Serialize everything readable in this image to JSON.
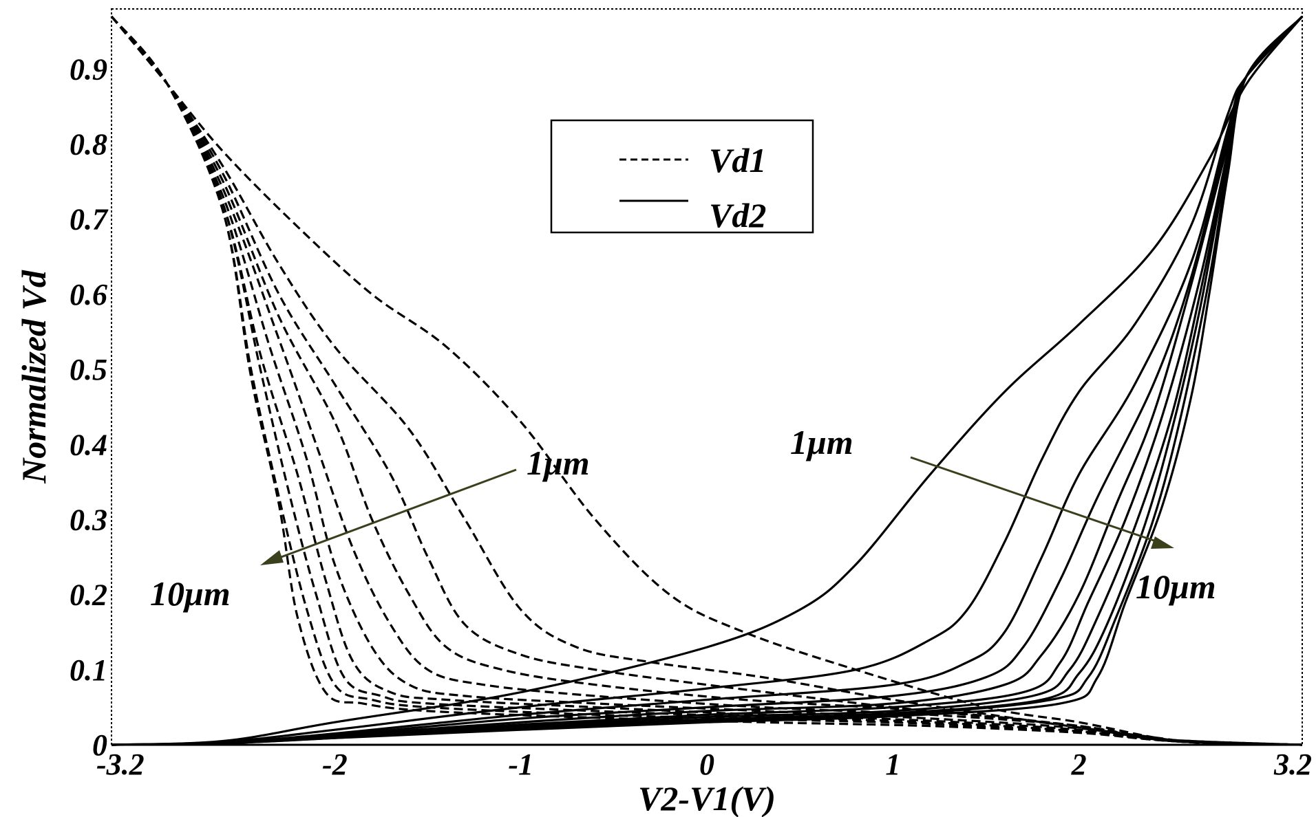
{
  "chart_data": {
    "type": "line",
    "title": "",
    "xlabel": "V2-V1(V)",
    "ylabel": "Normalized Vd",
    "xlim": [
      -3.2,
      3.2
    ],
    "ylim": [
      0,
      0.98
    ],
    "grid": false,
    "legend_position": "top-center",
    "x_ticks": [
      {
        "value": -3.2,
        "label": "-3.2"
      },
      {
        "value": -2,
        "label": "-2"
      },
      {
        "value": -1,
        "label": "-1"
      },
      {
        "value": 0,
        "label": "0"
      },
      {
        "value": 1,
        "label": "1"
      },
      {
        "value": 2,
        "label": "2"
      },
      {
        "value": 3.2,
        "label": "3.2"
      }
    ],
    "y_ticks": [
      {
        "value": 0,
        "label": "0"
      },
      {
        "value": 0.1,
        "label": "0.1"
      },
      {
        "value": 0.2,
        "label": "0.2"
      },
      {
        "value": 0.3,
        "label": "0.3"
      },
      {
        "value": 0.4,
        "label": "0.4"
      },
      {
        "value": 0.5,
        "label": "0.5"
      },
      {
        "value": 0.6,
        "label": "0.6"
      },
      {
        "value": 0.7,
        "label": "0.7"
      },
      {
        "value": 0.8,
        "label": "0.8"
      },
      {
        "value": 0.9,
        "label": "0.9"
      }
    ],
    "legend": [
      {
        "label": "Vd1",
        "style": "dashed"
      },
      {
        "label": "Vd2",
        "style": "solid"
      }
    ],
    "annotations": [
      {
        "text": "1μm",
        "group": "Vd1"
      },
      {
        "text": "10μm",
        "group": "Vd1"
      },
      {
        "text": "1μm",
        "group": "Vd2"
      },
      {
        "text": "10μm",
        "group": "Vd2"
      }
    ],
    "arrow_color": "#3a3f1c",
    "series": [
      {
        "group": "Vd1",
        "style": "dashed",
        "x": [
          -3.2,
          -2.9,
          -2.6,
          -2.2,
          -1.8,
          -1.4,
          -1.0,
          -0.6,
          -0.2,
          0.2,
          0.8,
          1.5,
          2.0,
          2.4,
          2.6,
          3.2
        ],
        "y": [
          0.97,
          0.88,
          0.79,
          0.69,
          0.6,
          0.53,
          0.43,
          0.3,
          0.2,
          0.15,
          0.1,
          0.05,
          0.03,
          0.01,
          0.005,
          0.0
        ]
      },
      {
        "group": "Vd1",
        "style": "dashed",
        "x": [
          -3.2,
          -2.9,
          -2.6,
          -2.3,
          -2.0,
          -1.6,
          -1.3,
          -1.0,
          -0.7,
          -0.3,
          0.3,
          1.0,
          1.8,
          2.4,
          2.6,
          3.2
        ],
        "y": [
          0.97,
          0.88,
          0.77,
          0.64,
          0.53,
          0.42,
          0.3,
          0.18,
          0.13,
          0.11,
          0.09,
          0.06,
          0.03,
          0.01,
          0.005,
          0.0
        ]
      },
      {
        "group": "Vd1",
        "style": "dashed",
        "x": [
          -3.2,
          -2.9,
          -2.6,
          -2.3,
          -2.0,
          -1.7,
          -1.5,
          -1.3,
          -1.0,
          -0.6,
          0.0,
          1.0,
          2.0,
          2.5,
          3.2
        ],
        "y": [
          0.97,
          0.88,
          0.76,
          0.6,
          0.48,
          0.36,
          0.25,
          0.16,
          0.12,
          0.1,
          0.08,
          0.05,
          0.025,
          0.005,
          0.0
        ]
      },
      {
        "group": "Vd1",
        "style": "dashed",
        "x": [
          -3.2,
          -2.9,
          -2.6,
          -2.3,
          -2.0,
          -1.8,
          -1.6,
          -1.4,
          -1.1,
          -0.6,
          0.2,
          1.2,
          2.0,
          2.5,
          3.2
        ],
        "y": [
          0.97,
          0.88,
          0.75,
          0.57,
          0.43,
          0.3,
          0.2,
          0.13,
          0.1,
          0.08,
          0.06,
          0.045,
          0.025,
          0.005,
          0.0
        ]
      },
      {
        "group": "Vd1",
        "style": "dashed",
        "x": [
          -3.2,
          -2.9,
          -2.6,
          -2.3,
          -2.1,
          -1.9,
          -1.7,
          -1.5,
          -1.2,
          -0.6,
          0.3,
          1.2,
          2.0,
          2.5,
          3.2
        ],
        "y": [
          0.97,
          0.88,
          0.74,
          0.54,
          0.4,
          0.26,
          0.16,
          0.1,
          0.08,
          0.065,
          0.05,
          0.04,
          0.025,
          0.005,
          0.0
        ]
      },
      {
        "group": "Vd1",
        "style": "dashed",
        "x": [
          -3.2,
          -2.9,
          -2.6,
          -2.35,
          -2.15,
          -2.0,
          -1.8,
          -1.6,
          -1.3,
          -0.6,
          0.3,
          1.2,
          2.0,
          2.5,
          3.2
        ],
        "y": [
          0.97,
          0.88,
          0.73,
          0.53,
          0.38,
          0.24,
          0.13,
          0.08,
          0.065,
          0.055,
          0.045,
          0.035,
          0.022,
          0.005,
          0.0
        ]
      },
      {
        "group": "Vd1",
        "style": "dashed",
        "x": [
          -3.2,
          -2.9,
          -2.6,
          -2.4,
          -2.2,
          -2.05,
          -1.9,
          -1.7,
          -1.4,
          -0.6,
          0.3,
          1.2,
          2.0,
          2.5,
          3.2
        ],
        "y": [
          0.97,
          0.88,
          0.72,
          0.52,
          0.36,
          0.22,
          0.11,
          0.07,
          0.06,
          0.05,
          0.04,
          0.032,
          0.02,
          0.005,
          0.0
        ]
      },
      {
        "group": "Vd1",
        "style": "dashed",
        "x": [
          -3.2,
          -2.9,
          -2.6,
          -2.4,
          -2.25,
          -2.1,
          -1.95,
          -1.75,
          -1.5,
          -0.6,
          0.3,
          1.2,
          2.0,
          2.5,
          3.2
        ],
        "y": [
          0.97,
          0.88,
          0.72,
          0.5,
          0.34,
          0.2,
          0.09,
          0.065,
          0.055,
          0.045,
          0.037,
          0.03,
          0.018,
          0.005,
          0.0
        ]
      },
      {
        "group": "Vd1",
        "style": "dashed",
        "x": [
          -3.2,
          -2.9,
          -2.6,
          -2.45,
          -2.3,
          -2.15,
          -2.0,
          -1.8,
          -1.5,
          -0.6,
          0.3,
          1.2,
          2.0,
          2.5,
          3.2
        ],
        "y": [
          0.97,
          0.88,
          0.71,
          0.5,
          0.33,
          0.18,
          0.08,
          0.06,
          0.05,
          0.04,
          0.034,
          0.028,
          0.017,
          0.005,
          0.0
        ]
      },
      {
        "group": "Vd1",
        "style": "dashed",
        "x": [
          -3.2,
          -2.9,
          -2.6,
          -2.45,
          -2.3,
          -2.2,
          -2.05,
          -1.85,
          -1.5,
          -0.6,
          0.3,
          1.2,
          2.0,
          2.5,
          3.2
        ],
        "y": [
          0.97,
          0.88,
          0.71,
          0.49,
          0.32,
          0.17,
          0.07,
          0.055,
          0.045,
          0.036,
          0.03,
          0.025,
          0.016,
          0.005,
          0.0
        ]
      },
      {
        "group": "Vd2",
        "style": "solid",
        "x": [
          -3.2,
          -2.6,
          -2.0,
          -1.0,
          0.0,
          0.5,
          0.8,
          1.2,
          1.6,
          2.0,
          2.4,
          2.7,
          2.9,
          3.2
        ],
        "y": [
          0.0,
          0.005,
          0.03,
          0.07,
          0.13,
          0.18,
          0.24,
          0.36,
          0.47,
          0.56,
          0.66,
          0.78,
          0.88,
          0.97
        ]
      },
      {
        "group": "Vd2",
        "style": "solid",
        "x": [
          -3.2,
          -2.6,
          -2.0,
          -1.0,
          0.0,
          0.8,
          1.2,
          1.4,
          1.6,
          1.8,
          2.0,
          2.3,
          2.6,
          2.8,
          2.9,
          3.2
        ],
        "y": [
          0.0,
          0.004,
          0.02,
          0.05,
          0.075,
          0.1,
          0.14,
          0.18,
          0.27,
          0.38,
          0.47,
          0.56,
          0.69,
          0.84,
          0.89,
          0.97
        ]
      },
      {
        "group": "Vd2",
        "style": "solid",
        "x": [
          -3.2,
          -2.6,
          -2.0,
          -1.0,
          0.0,
          1.0,
          1.4,
          1.6,
          1.8,
          2.0,
          2.3,
          2.6,
          2.8,
          2.9,
          3.2
        ],
        "y": [
          0.0,
          0.003,
          0.015,
          0.04,
          0.06,
          0.08,
          0.11,
          0.15,
          0.25,
          0.36,
          0.48,
          0.64,
          0.82,
          0.89,
          0.97
        ]
      },
      {
        "group": "Vd2",
        "style": "solid",
        "x": [
          -3.2,
          -2.6,
          -2.0,
          -1.0,
          0.0,
          1.0,
          1.5,
          1.7,
          1.9,
          2.1,
          2.4,
          2.6,
          2.8,
          2.9,
          3.2
        ],
        "y": [
          0.0,
          0.003,
          0.013,
          0.035,
          0.05,
          0.065,
          0.09,
          0.13,
          0.22,
          0.33,
          0.48,
          0.62,
          0.81,
          0.89,
          0.97
        ]
      },
      {
        "group": "Vd2",
        "style": "solid",
        "x": [
          -3.2,
          -2.6,
          -2.0,
          -1.0,
          0.0,
          1.0,
          1.6,
          1.8,
          2.0,
          2.2,
          2.4,
          2.6,
          2.8,
          2.9,
          3.2
        ],
        "y": [
          0.0,
          0.002,
          0.012,
          0.03,
          0.045,
          0.055,
          0.08,
          0.12,
          0.2,
          0.32,
          0.44,
          0.61,
          0.8,
          0.89,
          0.97
        ]
      },
      {
        "group": "Vd2",
        "style": "solid",
        "x": [
          -3.2,
          -2.6,
          -2.0,
          -1.0,
          0.0,
          1.0,
          1.7,
          1.9,
          2.05,
          2.25,
          2.45,
          2.65,
          2.8,
          2.9,
          3.2
        ],
        "y": [
          0.0,
          0.002,
          0.011,
          0.027,
          0.04,
          0.05,
          0.07,
          0.11,
          0.19,
          0.3,
          0.44,
          0.62,
          0.79,
          0.89,
          0.97
        ]
      },
      {
        "group": "Vd2",
        "style": "solid",
        "x": [
          -3.2,
          -2.6,
          -2.0,
          -1.0,
          0.0,
          1.0,
          1.75,
          1.95,
          2.1,
          2.3,
          2.5,
          2.65,
          2.8,
          2.9,
          3.2
        ],
        "y": [
          0.0,
          0.002,
          0.01,
          0.025,
          0.037,
          0.045,
          0.065,
          0.1,
          0.17,
          0.29,
          0.44,
          0.6,
          0.78,
          0.89,
          0.97
        ]
      },
      {
        "group": "Vd2",
        "style": "solid",
        "x": [
          -3.2,
          -2.6,
          -2.0,
          -1.0,
          0.0,
          1.0,
          1.8,
          2.0,
          2.15,
          2.35,
          2.5,
          2.65,
          2.8,
          2.9,
          3.2
        ],
        "y": [
          0.0,
          0.002,
          0.01,
          0.023,
          0.034,
          0.042,
          0.06,
          0.095,
          0.16,
          0.29,
          0.42,
          0.58,
          0.78,
          0.89,
          0.97
        ]
      },
      {
        "group": "Vd2",
        "style": "solid",
        "x": [
          -3.2,
          -2.6,
          -2.0,
          -1.0,
          0.0,
          1.0,
          1.85,
          2.05,
          2.2,
          2.4,
          2.55,
          2.7,
          2.8,
          2.9,
          3.2
        ],
        "y": [
          0.0,
          0.002,
          0.009,
          0.022,
          0.032,
          0.04,
          0.06,
          0.09,
          0.17,
          0.3,
          0.44,
          0.62,
          0.77,
          0.89,
          0.97
        ]
      },
      {
        "group": "Vd2",
        "style": "solid",
        "x": [
          -3.2,
          -2.6,
          -2.0,
          -1.0,
          0.0,
          1.0,
          1.9,
          2.1,
          2.25,
          2.45,
          2.6,
          2.7,
          2.8,
          2.9,
          3.2
        ],
        "y": [
          0.0,
          0.002,
          0.009,
          0.02,
          0.03,
          0.038,
          0.055,
          0.09,
          0.19,
          0.32,
          0.46,
          0.6,
          0.76,
          0.89,
          0.97
        ]
      }
    ]
  }
}
